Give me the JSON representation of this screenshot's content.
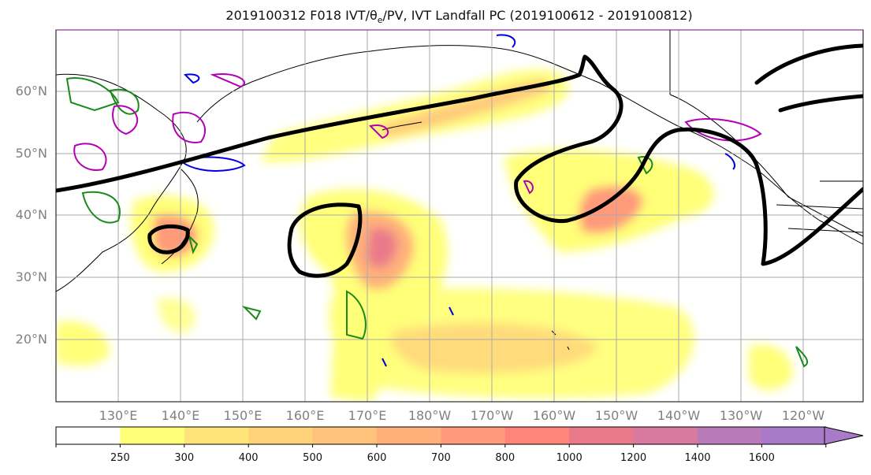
{
  "title": {
    "prefix": "2019100312 F018 IVT/θ",
    "sub": "e",
    "suffix": "/PV, IVT Landfall PC (2019100612 - 2019100812)"
  },
  "map": {
    "lat_labels": [
      "60°N",
      "50°N",
      "40°N",
      "30°N",
      "20°N"
    ],
    "lon_labels": [
      "130°E",
      "140°E",
      "150°E",
      "160°E",
      "170°E",
      "180°W",
      "170°W",
      "160°W",
      "150°W",
      "140°W",
      "130°W",
      "120°W"
    ],
    "gridline_color": "#aaaaaa"
  },
  "colorbar": {
    "levels": [
      "250",
      "300",
      "400",
      "500",
      "600",
      "700",
      "800",
      "1000",
      "1200",
      "1400",
      "1600"
    ],
    "colors": [
      "#ffffff",
      "#ffff78",
      "#ffe47a",
      "#ffd27a",
      "#ffc27a",
      "#ffb07a",
      "#ff9a7a",
      "#ff857a",
      "#ea7a8a",
      "#d87aa0",
      "#b87ab8",
      "#a87ac8"
    ]
  },
  "chart_data": {
    "type": "map",
    "title": "2019100312 F018 IVT/θe/PV, IVT Landfall PC (2019100612 - 2019100812)",
    "extent": {
      "lon_min": 120,
      "lon_max": 250,
      "lat_min": 10,
      "lat_max": 70
    },
    "fields": [
      "IVT (shaded)",
      "θe contours (black)",
      "PV contours (green, blue, magenta)"
    ],
    "colorbar_levels": [
      250,
      300,
      400,
      500,
      600,
      700,
      800,
      1000,
      1200,
      1400,
      1600
    ],
    "colorbar_extend": "max"
  }
}
